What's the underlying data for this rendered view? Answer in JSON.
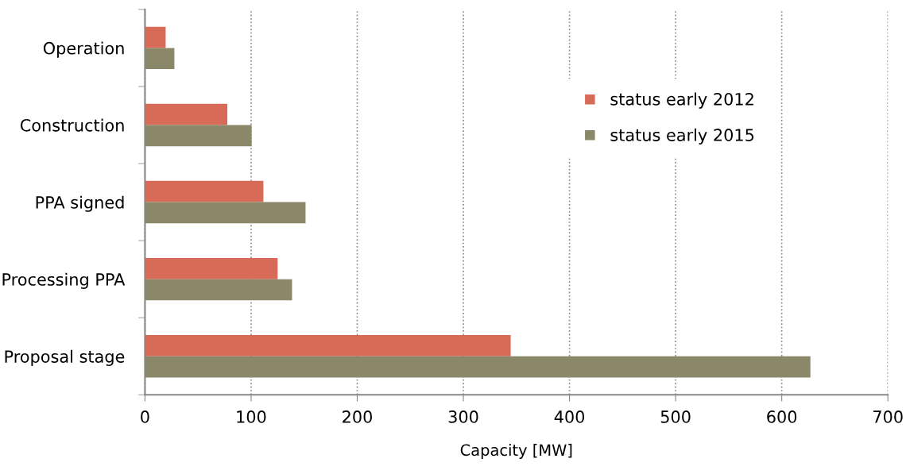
{
  "chart_data": {
    "type": "bar",
    "orientation": "horizontal",
    "xlabel": "Capacity [MW]",
    "categories": [
      "Operation",
      "Construction",
      "PPA signed",
      "Processing PPA",
      "Proposal stage"
    ],
    "series": [
      {
        "name": "status early 2012",
        "color": "#d76b58",
        "values": [
          19.5,
          77.6,
          111.6,
          125,
          344.6
        ]
      },
      {
        "name": "status early 2015",
        "color": "#8a8869",
        "values": [
          27.7,
          100.5,
          151.3,
          138.6,
          627
        ]
      }
    ],
    "xlim": [
      0,
      700
    ],
    "xticks": [
      0,
      100,
      200,
      300,
      400,
      500,
      600,
      700
    ],
    "grid": "x",
    "legend": "upper right"
  }
}
